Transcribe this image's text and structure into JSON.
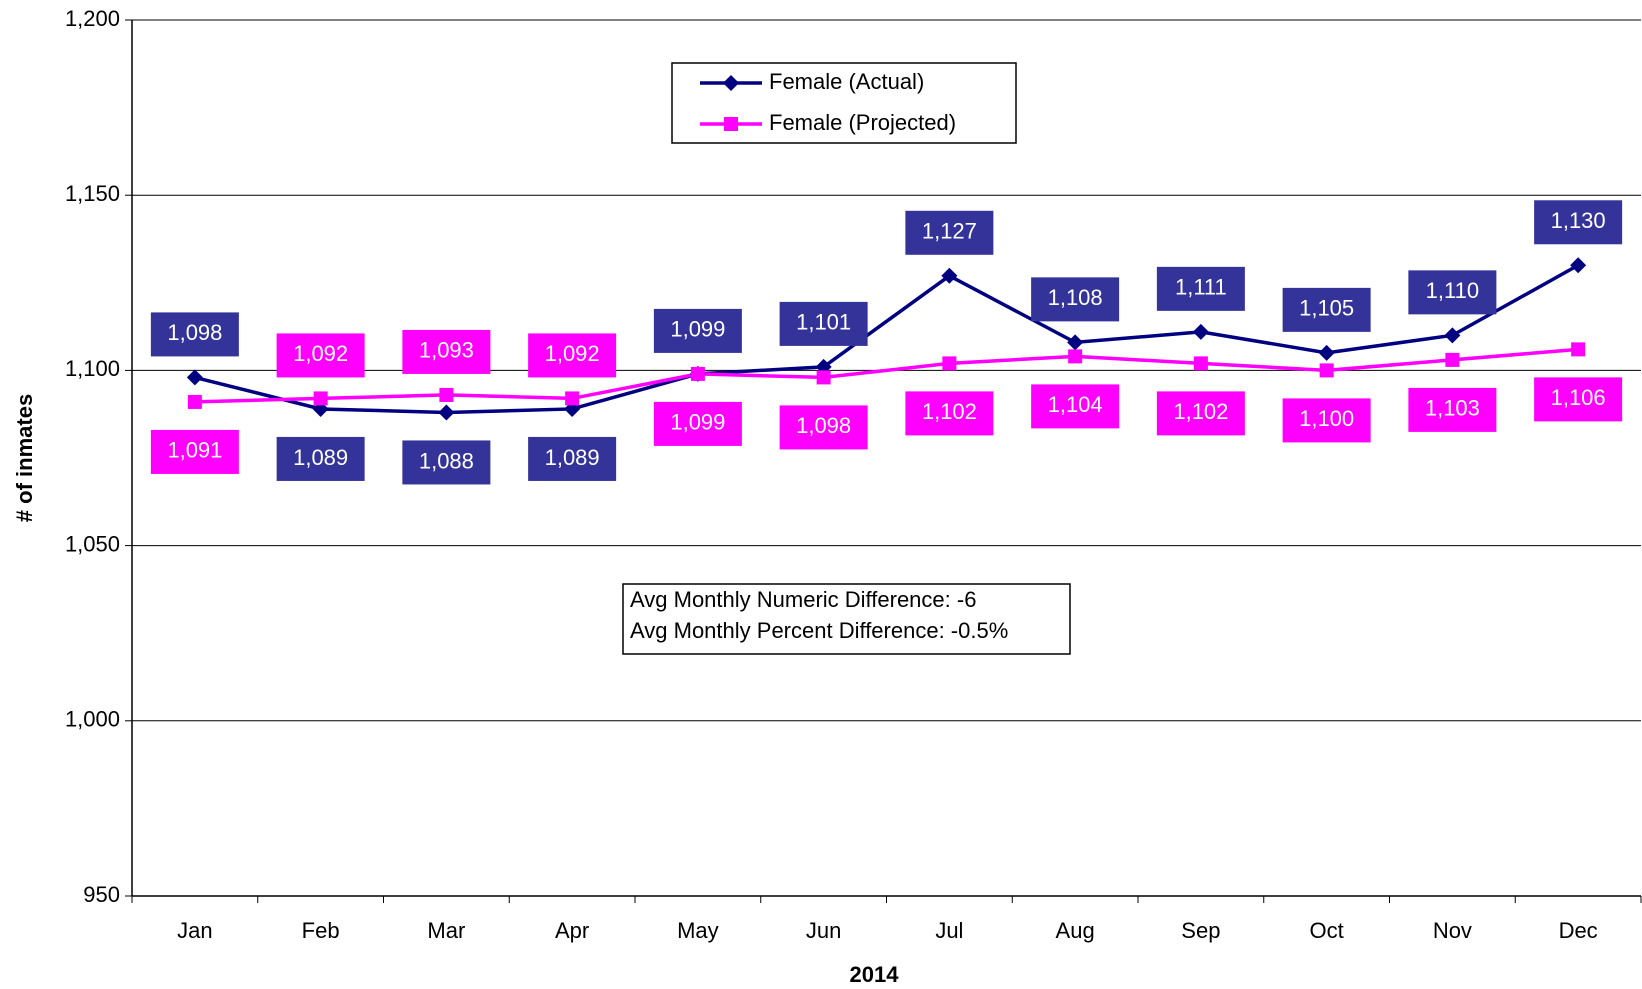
{
  "chart_data": {
    "type": "line",
    "categories": [
      "Jan",
      "Feb",
      "Mar",
      "Apr",
      "May",
      "Jun",
      "Jul",
      "Aug",
      "Sep",
      "Oct",
      "Nov",
      "Dec"
    ],
    "series": [
      {
        "name": "Female (Actual)",
        "color": "#000080",
        "label_color": "#333399",
        "marker": "diamond",
        "values": [
          1098,
          1089,
          1088,
          1089,
          1099,
          1101,
          1127,
          1108,
          1111,
          1105,
          1110,
          1130
        ],
        "value_labels": [
          "1,098",
          "1,089",
          "1,088",
          "1,089",
          "1,099",
          "1,101",
          "1,127",
          "1,108",
          "1,111",
          "1,105",
          "1,110",
          "1,130"
        ]
      },
      {
        "name": "Female (Projected)",
        "color": "#ff00ff",
        "label_color": "#ff00ff",
        "marker": "square",
        "values": [
          1091,
          1092,
          1093,
          1092,
          1099,
          1098,
          1102,
          1104,
          1102,
          1100,
          1103,
          1106
        ],
        "value_labels": [
          "1,091",
          "1,092",
          "1,093",
          "1,092",
          "1,099",
          "1,098",
          "1,102",
          "1,104",
          "1,102",
          "1,100",
          "1,103",
          "1,106"
        ]
      }
    ],
    "ylim": [
      950,
      1200
    ],
    "yticks": [
      {
        "value": 950,
        "label": "950"
      },
      {
        "value": 1000,
        "label": "1,000"
      },
      {
        "value": 1050,
        "label": "1,050"
      },
      {
        "value": 1100,
        "label": "1,100"
      },
      {
        "value": 1150,
        "label": "1,150"
      },
      {
        "value": 1200,
        "label": "1,200"
      }
    ],
    "grid": true,
    "xlabel": "2014",
    "ylabel": "# of inmates",
    "annotations": [
      "Avg Monthly Numeric Difference: -6",
      "Avg Monthly Percent Difference: -0.5%"
    ],
    "legend": "top"
  }
}
